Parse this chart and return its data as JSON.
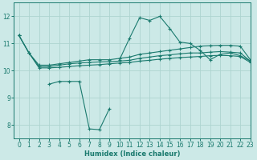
{
  "xlabel": "Humidex (Indice chaleur)",
  "background_color": "#cce9e7",
  "line_color": "#1a7a6e",
  "grid_color": "#aed4d0",
  "xlim": [
    -0.5,
    23
  ],
  "ylim": [
    7.5,
    12.5
  ],
  "xticks": [
    0,
    1,
    2,
    3,
    4,
    5,
    6,
    7,
    8,
    9,
    10,
    11,
    12,
    13,
    14,
    15,
    16,
    17,
    18,
    19,
    20,
    21,
    22,
    23
  ],
  "yticks": [
    8,
    9,
    10,
    11,
    12
  ],
  "series": [
    {
      "x": [
        0,
        1,
        2,
        3,
        4,
        5,
        6,
        7,
        8,
        9,
        10,
        11,
        12,
        13,
        14,
        15,
        16,
        17,
        18,
        19,
        20,
        21,
        22,
        23
      ],
      "y": [
        11.3,
        10.65,
        10.2,
        10.2,
        10.25,
        10.3,
        10.35,
        10.4,
        10.4,
        10.4,
        10.45,
        10.5,
        10.6,
        10.65,
        10.7,
        10.75,
        10.8,
        10.85,
        10.9,
        10.92,
        10.93,
        10.93,
        10.9,
        10.4
      ]
    },
    {
      "x": [
        0,
        1,
        2,
        3,
        4,
        5,
        6,
        7,
        8,
        9,
        10,
        11,
        12,
        13,
        14,
        15,
        16,
        17,
        18,
        19,
        20,
        21,
        22,
        23
      ],
      "y": [
        11.3,
        10.65,
        10.15,
        10.15,
        10.2,
        10.25,
        10.28,
        10.3,
        10.32,
        10.33,
        10.35,
        10.38,
        10.45,
        10.5,
        10.55,
        10.58,
        10.62,
        10.65,
        10.65,
        10.68,
        10.7,
        10.68,
        10.65,
        10.35
      ]
    },
    {
      "x": [
        0,
        1,
        2,
        3,
        4,
        5,
        6,
        7,
        8,
        9,
        10,
        11,
        12,
        13,
        14,
        15,
        16,
        17,
        18,
        19,
        20,
        21,
        22,
        23
      ],
      "y": [
        11.3,
        10.65,
        10.1,
        10.1,
        10.12,
        10.15,
        10.18,
        10.2,
        10.22,
        10.25,
        10.28,
        10.3,
        10.35,
        10.38,
        10.42,
        10.45,
        10.48,
        10.5,
        10.52,
        10.55,
        10.56,
        10.55,
        10.52,
        10.3
      ]
    },
    {
      "x": [
        3,
        4,
        5,
        6,
        7,
        8,
        9
      ],
      "y": [
        9.5,
        9.6,
        9.6,
        9.6,
        7.85,
        7.82,
        8.6
      ]
    },
    {
      "x": [
        10,
        11,
        12,
        13,
        14,
        15,
        16,
        17,
        18,
        19,
        20,
        21,
        22,
        23
      ],
      "y": [
        10.4,
        11.2,
        11.95,
        11.85,
        12.0,
        11.55,
        11.05,
        11.0,
        10.75,
        10.4,
        10.6,
        10.65,
        10.55,
        10.35
      ]
    }
  ]
}
